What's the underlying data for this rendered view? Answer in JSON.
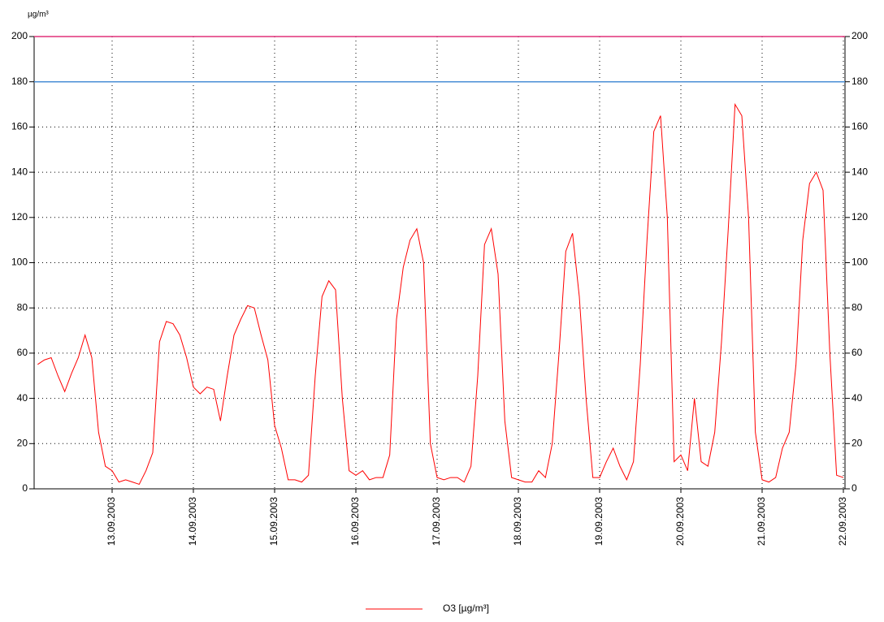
{
  "chart_data": {
    "type": "line",
    "y_axis_label": "µg/m³",
    "categories": [
      null,
      null,
      null,
      null,
      null,
      null,
      null,
      null,
      null,
      null,
      null,
      "13.09.2003",
      null,
      null,
      null,
      null,
      null,
      null,
      null,
      null,
      null,
      null,
      null,
      "14.09.2003",
      null,
      null,
      null,
      null,
      null,
      null,
      null,
      null,
      null,
      null,
      null,
      "15.09.2003",
      null,
      null,
      null,
      null,
      null,
      null,
      null,
      null,
      null,
      null,
      null,
      "16.09.2003",
      null,
      null,
      null,
      null,
      null,
      null,
      null,
      null,
      null,
      null,
      null,
      "17.09.2003",
      null,
      null,
      null,
      null,
      null,
      null,
      null,
      null,
      null,
      null,
      null,
      "18.09.2003",
      null,
      null,
      null,
      null,
      null,
      null,
      null,
      null,
      null,
      null,
      null,
      "19.09.2003",
      null,
      null,
      null,
      null,
      null,
      null,
      null,
      null,
      null,
      null,
      null,
      "20.09.2003",
      null,
      null,
      null,
      null,
      null,
      null,
      null,
      null,
      null,
      null,
      null,
      "21.09.2003",
      null,
      null,
      null,
      null,
      null,
      null,
      null,
      null,
      null,
      null,
      null,
      "22.09.2003"
    ],
    "series": [
      {
        "name": "O3 [µg/m³]",
        "color": "#ff0000",
        "values": [
          55,
          57,
          58,
          50,
          43,
          51,
          58,
          68,
          58,
          25,
          10,
          8,
          3,
          4,
          3,
          2,
          8,
          16,
          65,
          74,
          73,
          68,
          58,
          45,
          42,
          45,
          44,
          30,
          50,
          68,
          75,
          81,
          80,
          68,
          57,
          28,
          18,
          4,
          4,
          3,
          6,
          50,
          85,
          92,
          88,
          40,
          8,
          6,
          8,
          4,
          5,
          5,
          15,
          75,
          98,
          110,
          115,
          100,
          20,
          5,
          4,
          5,
          5,
          3,
          10,
          50,
          108,
          115,
          95,
          30,
          5,
          4,
          3,
          3,
          8,
          5,
          20,
          60,
          105,
          113,
          85,
          40,
          5,
          5,
          12,
          18,
          10,
          4,
          12,
          55,
          110,
          158,
          165,
          120,
          12,
          15,
          8,
          40,
          12,
          10,
          25,
          65,
          115,
          170,
          165,
          120,
          25,
          4,
          3,
          5,
          18,
          25,
          55,
          110,
          135,
          140,
          132,
          60,
          6,
          5
        ]
      }
    ],
    "reference_lines": [
      {
        "value": 180,
        "color": "#4a8fd6"
      },
      {
        "value": 200,
        "color": "#e0307a"
      }
    ],
    "ylim": [
      0,
      200
    ],
    "yticks": [
      0,
      20,
      40,
      60,
      80,
      100,
      120,
      140,
      160,
      180,
      200
    ],
    "grid": true,
    "right_axis": true
  }
}
